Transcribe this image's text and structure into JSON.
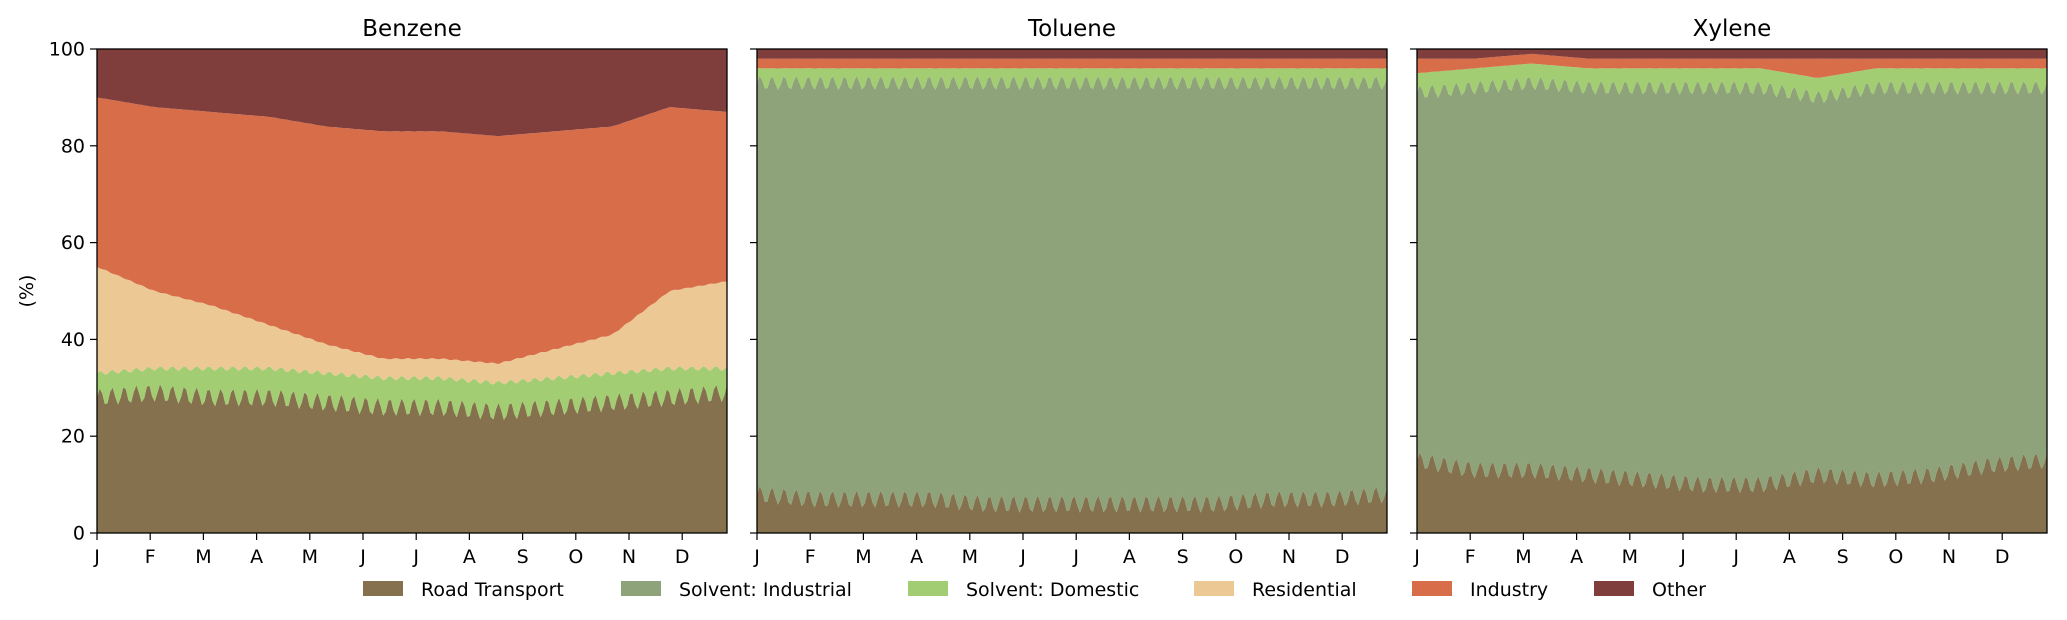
{
  "colors": {
    "Road Transport": "#85714d",
    "Solvent: Industrial": "#8fa37b",
    "Solvent: Domestic": "#a3cd73",
    "Residential": "#ecc894",
    "Industry": "#d86d4a",
    "Other": "#7f3d3b"
  },
  "chart_data": [
    {
      "type": "area",
      "stacked": true,
      "title": "Benzene",
      "ylabel": "(%)",
      "ylim": [
        0,
        100
      ],
      "yticks": [
        0,
        20,
        40,
        60,
        80,
        100
      ],
      "month_ticks": [
        "J",
        "F",
        "M",
        "A",
        "M",
        "J",
        "J",
        "A",
        "S",
        "O",
        "N",
        "D"
      ],
      "months": [
        1,
        2,
        3,
        4,
        5,
        6,
        7,
        8,
        9,
        10,
        11,
        12
      ],
      "series": [
        {
          "name": "Road Transport",
          "values": [
            28,
            29,
            28,
            28,
            27,
            26,
            26,
            25,
            26,
            27,
            28,
            29
          ]
        },
        {
          "name": "Solvent: Domestic",
          "values": [
            5,
            5,
            6,
            6,
            6,
            6,
            6,
            6,
            6,
            6,
            6,
            5
          ]
        },
        {
          "name": "Residential",
          "values": [
            22,
            16,
            13,
            9,
            6,
            4,
            4,
            4,
            6,
            8,
            16,
            18
          ]
        },
        {
          "name": "Industry",
          "values": [
            35,
            38,
            40,
            43,
            45,
            47,
            47,
            47,
            45,
            43,
            38,
            35
          ]
        },
        {
          "name": "Other",
          "values": [
            10,
            12,
            13,
            14,
            16,
            17,
            17,
            18,
            17,
            16,
            12,
            13
          ]
        }
      ]
    },
    {
      "type": "area",
      "stacked": true,
      "title": "Toluene",
      "ylim": [
        0,
        100
      ],
      "yticks": [
        0,
        20,
        40,
        60,
        80,
        100
      ],
      "month_ticks": [
        "J",
        "F",
        "M",
        "A",
        "M",
        "J",
        "J",
        "A",
        "S",
        "O",
        "N",
        "D"
      ],
      "months": [
        1,
        2,
        3,
        4,
        5,
        6,
        7,
        8,
        9,
        10,
        11,
        12
      ],
      "series": [
        {
          "name": "Road Transport",
          "values": [
            8,
            7,
            7,
            7,
            6,
            6,
            6,
            6,
            6,
            7,
            7,
            8
          ]
        },
        {
          "name": "Solvent: Industrial",
          "values": [
            85,
            86,
            86,
            86,
            87,
            87,
            87,
            87,
            87,
            86,
            86,
            85
          ]
        },
        {
          "name": "Solvent: Domestic",
          "values": [
            3,
            3,
            3,
            3,
            3,
            3,
            3,
            3,
            3,
            3,
            3,
            3
          ]
        },
        {
          "name": "Industry",
          "values": [
            2,
            2,
            2,
            2,
            2,
            2,
            2,
            2,
            2,
            2,
            2,
            2
          ]
        },
        {
          "name": "Other",
          "values": [
            2,
            2,
            2,
            2,
            2,
            2,
            2,
            2,
            2,
            2,
            2,
            2
          ]
        }
      ]
    },
    {
      "type": "area",
      "stacked": true,
      "title": "Xylene",
      "ylim": [
        0,
        100
      ],
      "yticks": [
        0,
        20,
        40,
        60,
        80,
        100
      ],
      "month_ticks": [
        "J",
        "F",
        "M",
        "A",
        "M",
        "J",
        "J",
        "A",
        "S",
        "O",
        "N",
        "D"
      ],
      "months": [
        1,
        2,
        3,
        4,
        5,
        6,
        7,
        8,
        9,
        10,
        11,
        12
      ],
      "series": [
        {
          "name": "Road Transport",
          "values": [
            15,
            13,
            13,
            12,
            11,
            10,
            10,
            12,
            11,
            12,
            14,
            15
          ]
        },
        {
          "name": "Solvent: Industrial",
          "values": [
            76,
            79,
            80,
            80,
            81,
            82,
            82,
            78,
            81,
            80,
            78,
            77
          ]
        },
        {
          "name": "Solvent: Domestic",
          "values": [
            4,
            4,
            4,
            4,
            4,
            4,
            4,
            4,
            4,
            4,
            4,
            4
          ]
        },
        {
          "name": "Industry",
          "values": [
            3,
            2,
            2,
            2,
            2,
            2,
            2,
            4,
            2,
            2,
            2,
            2
          ]
        },
        {
          "name": "Other",
          "values": [
            2,
            2,
            1,
            2,
            2,
            2,
            2,
            2,
            2,
            2,
            2,
            2
          ]
        }
      ]
    }
  ],
  "legend": {
    "placement": "bottom",
    "entries": [
      "Road Transport",
      "Solvent: Industrial",
      "Solvent: Domestic",
      "Residential",
      "Industry",
      "Other"
    ]
  }
}
